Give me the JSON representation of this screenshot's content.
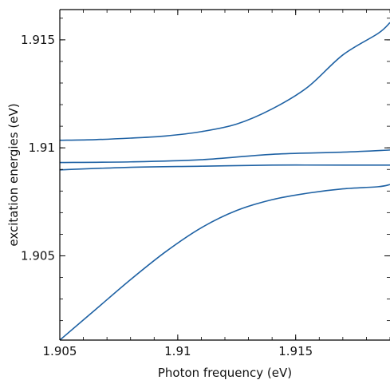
{
  "colors": {
    "series": "#1f62a4",
    "axis": "#000000",
    "background": "#ffffff"
  },
  "chart_data": {
    "type": "line",
    "title": "",
    "xlabel": "Photon frequency (eV)",
    "ylabel": "excitation energies (eV)",
    "xlim": [
      1.905,
      1.919
    ],
    "ylim": [
      1.9011,
      1.9164
    ],
    "xticks": [
      1.905,
      1.91,
      1.915
    ],
    "xtick_labels": [
      "1.905",
      "1.91",
      "1.915"
    ],
    "yticks": [
      1.905,
      1.91,
      1.915
    ],
    "ytick_labels": [
      "1.905",
      "1.91",
      "1.915"
    ],
    "grid": false,
    "legend": "none",
    "series": [
      {
        "x": [
          1.905,
          1.9065,
          1.908,
          1.9095,
          1.911,
          1.9125,
          1.914,
          1.9155,
          1.917,
          1.9185,
          1.919
        ],
        "values": [
          1.91035,
          1.91038,
          1.91045,
          1.91055,
          1.91075,
          1.9111,
          1.9118,
          1.9128,
          1.9143,
          1.9153,
          1.9158
        ]
      },
      {
        "x": [
          1.905,
          1.908,
          1.911,
          1.914,
          1.917,
          1.919
        ],
        "values": [
          1.90932,
          1.90935,
          1.90945,
          1.9097,
          1.9098,
          1.9099
        ]
      },
      {
        "x": [
          1.905,
          1.908,
          1.911,
          1.914,
          1.917,
          1.919
        ],
        "values": [
          1.90898,
          1.9091,
          1.90915,
          1.9092,
          1.9092,
          1.9092
        ]
      },
      {
        "x": [
          1.905,
          1.9065,
          1.908,
          1.9095,
          1.911,
          1.9125,
          1.914,
          1.9155,
          1.917,
          1.9185,
          1.919
        ],
        "values": [
          1.9011,
          1.9025,
          1.9039,
          1.9052,
          1.9063,
          1.9071,
          1.9076,
          1.9079,
          1.9081,
          1.9082,
          1.9083
        ]
      }
    ]
  }
}
